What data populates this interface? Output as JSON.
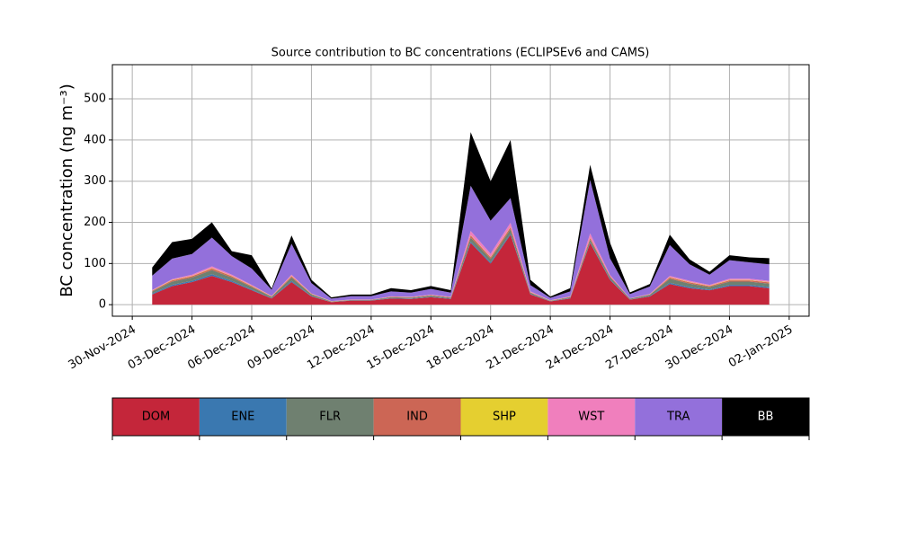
{
  "chart_data": {
    "type": "stacked_area",
    "title": "Source contribution to BC concentrations (ECLIPSEv6 and CAMS)",
    "y_label": "BC concentration (ng m⁻³)",
    "x": [
      "2024-12-01",
      "2024-12-02",
      "2024-12-03",
      "2024-12-04",
      "2024-12-05",
      "2024-12-06",
      "2024-12-07",
      "2024-12-08",
      "2024-12-09",
      "2024-12-10",
      "2024-12-11",
      "2024-12-12",
      "2024-12-13",
      "2024-12-14",
      "2024-12-15",
      "2024-12-16",
      "2024-12-17",
      "2024-12-18",
      "2024-12-19",
      "2024-12-20",
      "2024-12-21",
      "2024-12-22",
      "2024-12-23",
      "2024-12-24",
      "2024-12-25",
      "2024-12-26",
      "2024-12-27",
      "2024-12-28",
      "2024-12-29",
      "2024-12-30",
      "2024-12-31",
      "2025-01-01"
    ],
    "series": [
      {
        "name": "DOM",
        "color": "#c4263a",
        "values": [
          25,
          45,
          55,
          70,
          55,
          35,
          15,
          55,
          20,
          6,
          10,
          10,
          15,
          14,
          18,
          14,
          150,
          100,
          170,
          25,
          8,
          15,
          150,
          60,
          12,
          20,
          50,
          40,
          35,
          45,
          45,
          40
        ]
      },
      {
        "name": "ENE",
        "color": "#3a78b0",
        "values": [
          2,
          3,
          3,
          4,
          3,
          2,
          1,
          3,
          1,
          0.5,
          0.5,
          0.5,
          1,
          1,
          1,
          1,
          3,
          3,
          3,
          1,
          0.5,
          1,
          2,
          2,
          0.5,
          1,
          3,
          3,
          2,
          3,
          3,
          3
        ]
      },
      {
        "name": "FLR",
        "color": "#6f8070",
        "values": [
          5,
          8,
          8,
          10,
          8,
          6,
          3,
          8,
          4,
          1,
          1,
          1,
          2,
          2,
          3,
          2,
          10,
          8,
          10,
          3,
          1,
          2,
          6,
          5,
          2,
          3,
          10,
          8,
          6,
          8,
          8,
          8
        ]
      },
      {
        "name": "IND",
        "color": "#cc6655",
        "values": [
          2,
          3,
          3,
          4,
          3,
          2,
          1,
          3,
          1,
          0.5,
          0.5,
          0.5,
          1,
          1,
          1,
          1,
          5,
          4,
          5,
          1,
          0.5,
          1,
          4,
          2,
          0.5,
          1,
          3,
          3,
          2,
          3,
          3,
          3
        ]
      },
      {
        "name": "SHP",
        "color": "#e5cf30",
        "values": [
          0.5,
          1,
          1,
          1,
          1,
          1,
          0.5,
          1,
          0.5,
          0.2,
          0.2,
          0.2,
          0.3,
          0.3,
          0.3,
          0.3,
          1,
          1,
          1,
          0.5,
          0.2,
          0.3,
          1,
          0.5,
          0.2,
          0.3,
          1,
          1,
          1,
          1,
          1,
          1
        ]
      },
      {
        "name": "WST",
        "color": "#f07fbd",
        "values": [
          1,
          2,
          3,
          4,
          3,
          2,
          1,
          3,
          1,
          0.5,
          0.5,
          0.5,
          1,
          1,
          1,
          1,
          10,
          8,
          10,
          2,
          0.5,
          1,
          10,
          3,
          0.5,
          1,
          3,
          3,
          2,
          3,
          3,
          3
        ]
      },
      {
        "name": "TRA",
        "color": "#9370db",
        "values": [
          35,
          50,
          50,
          70,
          45,
          40,
          15,
          75,
          25,
          6,
          8,
          8,
          12,
          10,
          14,
          10,
          110,
          80,
          60,
          15,
          6,
          12,
          130,
          40,
          10,
          18,
          75,
          40,
          25,
          45,
          40,
          40
        ]
      },
      {
        "name": "BB",
        "color": "#000000",
        "values": [
          20,
          40,
          37,
          37,
          12,
          32,
          3,
          20,
          8,
          3,
          4,
          4,
          8,
          6,
          7,
          6,
          130,
          96,
          141,
          13,
          3,
          8,
          37,
          38,
          4,
          6,
          25,
          12,
          7,
          12,
          12,
          15
        ]
      }
    ],
    "xlim": [
      "2024-11-29",
      "2025-01-03"
    ],
    "xticks": [
      {
        "value": "2024-11-30",
        "label": "30-Nov-2024"
      },
      {
        "value": "2024-12-03",
        "label": "03-Dec-2024"
      },
      {
        "value": "2024-12-06",
        "label": "06-Dec-2024"
      },
      {
        "value": "2024-12-09",
        "label": "09-Dec-2024"
      },
      {
        "value": "2024-12-12",
        "label": "12-Dec-2024"
      },
      {
        "value": "2024-12-15",
        "label": "15-Dec-2024"
      },
      {
        "value": "2024-12-18",
        "label": "18-Dec-2024"
      },
      {
        "value": "2024-12-21",
        "label": "21-Dec-2024"
      },
      {
        "value": "2024-12-24",
        "label": "24-Dec-2024"
      },
      {
        "value": "2024-12-27",
        "label": "27-Dec-2024"
      },
      {
        "value": "2024-12-30",
        "label": "30-Dec-2024"
      },
      {
        "value": "2025-01-02",
        "label": "02-Jan-2025"
      }
    ],
    "ylim": [
      -28,
      583
    ],
    "yticks": [
      0,
      100,
      200,
      300,
      400,
      500
    ],
    "grid": true
  }
}
